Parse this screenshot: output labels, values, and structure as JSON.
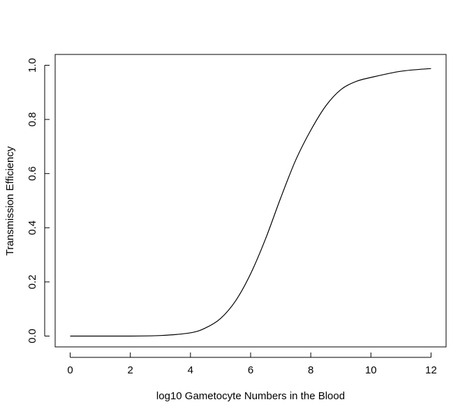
{
  "chart_data": {
    "type": "line",
    "title": "",
    "xlabel": "log10 Gametocyte Numbers in the Blood",
    "ylabel": "Transmission Efficiency",
    "xlim": [
      -0.5,
      12.5
    ],
    "ylim": [
      -0.04,
      1.04
    ],
    "x_ticks": [
      0,
      2,
      4,
      6,
      8,
      10,
      12
    ],
    "y_ticks": [
      0.0,
      0.2,
      0.4,
      0.6,
      0.8,
      1.0
    ],
    "x_tick_labels": [
      "0",
      "2",
      "4",
      "6",
      "8",
      "10",
      "12"
    ],
    "y_tick_labels": [
      "0.0",
      "0.2",
      "0.4",
      "0.6",
      "0.8",
      "1.0"
    ],
    "grid": false,
    "series": [
      {
        "color": "#000000",
        "x": [
          0,
          1,
          2,
          3,
          4,
          4.5,
          5,
          5.5,
          6,
          6.5,
          7,
          7.5,
          8,
          8.5,
          9,
          9.5,
          10,
          11,
          12
        ],
        "y": [
          0.0,
          0.0,
          0.0,
          0.002,
          0.012,
          0.03,
          0.065,
          0.13,
          0.23,
          0.36,
          0.51,
          0.65,
          0.76,
          0.85,
          0.91,
          0.94,
          0.955,
          0.978,
          0.988
        ]
      }
    ]
  }
}
